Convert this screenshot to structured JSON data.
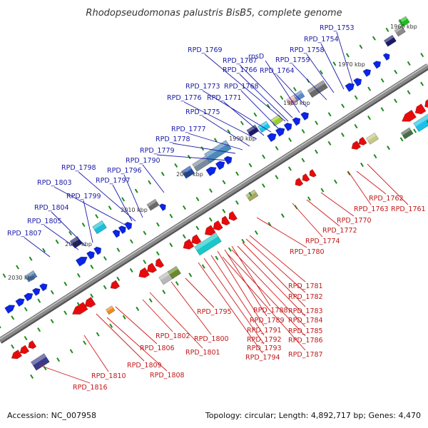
{
  "title": "Rhodopseudomonas palustris BisB5, complete genome",
  "footer": {
    "accession": "Accession: NC_007958",
    "topology": "Topology: circular; Length: 4,892,717 bp; Genes: 4,470"
  },
  "colors": {
    "backbone": "#8a8a8a",
    "forward_gene": "#0a24e8",
    "reverse_gene": "#e80a0a",
    "blue_label": "#1a1aa8",
    "red_label": "#c01818",
    "tick": "#1d8a1d"
  },
  "ticks": [
    {
      "label": "1960 kbp"
    },
    {
      "label": "1970 kbp"
    },
    {
      "label": "1980 kbp"
    },
    {
      "label": "1990 kbp"
    },
    {
      "label": "2000 kbp"
    },
    {
      "label": "2010 kbp"
    },
    {
      "label": "2020 kbp"
    },
    {
      "label": "2030 kbp"
    }
  ],
  "upper_labels": [
    {
      "text": "RPD_1753"
    },
    {
      "text": "RPD_1754"
    },
    {
      "text": "RPD_1758"
    },
    {
      "text": "RPD_1759"
    },
    {
      "text": "RPD_1764"
    },
    {
      "text": "rpsD"
    },
    {
      "text": "RPD_1767"
    },
    {
      "text": "RPD_1769"
    },
    {
      "text": "RPD_1766"
    },
    {
      "text": "RPD_1768"
    },
    {
      "text": "RPD_1773"
    },
    {
      "text": "RPD_1771"
    },
    {
      "text": "RPD_1776"
    },
    {
      "text": "RPD_1775"
    },
    {
      "text": "RPD_1777"
    },
    {
      "text": "RPD_1778"
    },
    {
      "text": "RPD_1779"
    },
    {
      "text": "RPD_1790"
    },
    {
      "text": "RPD_1798"
    },
    {
      "text": "RPD_1796"
    },
    {
      "text": "RPD_1797"
    },
    {
      "text": "RPD_1803"
    },
    {
      "text": "RPD_1799"
    },
    {
      "text": "RPD_1804"
    },
    {
      "text": "RPD_1805"
    },
    {
      "text": "RPD_1807"
    }
  ],
  "lower_labels": [
    {
      "text": "RPD_1762"
    },
    {
      "text": "RPD_1763"
    },
    {
      "text": "RPD_1761"
    },
    {
      "text": "RPD_1770"
    },
    {
      "text": "RPD_1772"
    },
    {
      "text": "RPD_1774"
    },
    {
      "text": "RPD_1780"
    },
    {
      "text": "RPD_1781"
    },
    {
      "text": "RPD_1782"
    },
    {
      "text": "RPD_1783"
    },
    {
      "text": "RPD_1788"
    },
    {
      "text": "RPD_1795"
    },
    {
      "text": "RPD_1784"
    },
    {
      "text": "RPD_1789"
    },
    {
      "text": "RPD_1785"
    },
    {
      "text": "RPD_1791"
    },
    {
      "text": "RPD_1786"
    },
    {
      "text": "RPD_1792"
    },
    {
      "text": "RPD_1800"
    },
    {
      "text": "RPD_1793"
    },
    {
      "text": "RPD_1787"
    },
    {
      "text": "RPD_1802"
    },
    {
      "text": "RPD_1794"
    },
    {
      "text": "RPD_1806"
    },
    {
      "text": "RPD_1801"
    },
    {
      "text": "RPD_1809"
    },
    {
      "text": "RPD_1808"
    },
    {
      "text": "RPD_1810"
    },
    {
      "text": "RPD_1816"
    }
  ]
}
